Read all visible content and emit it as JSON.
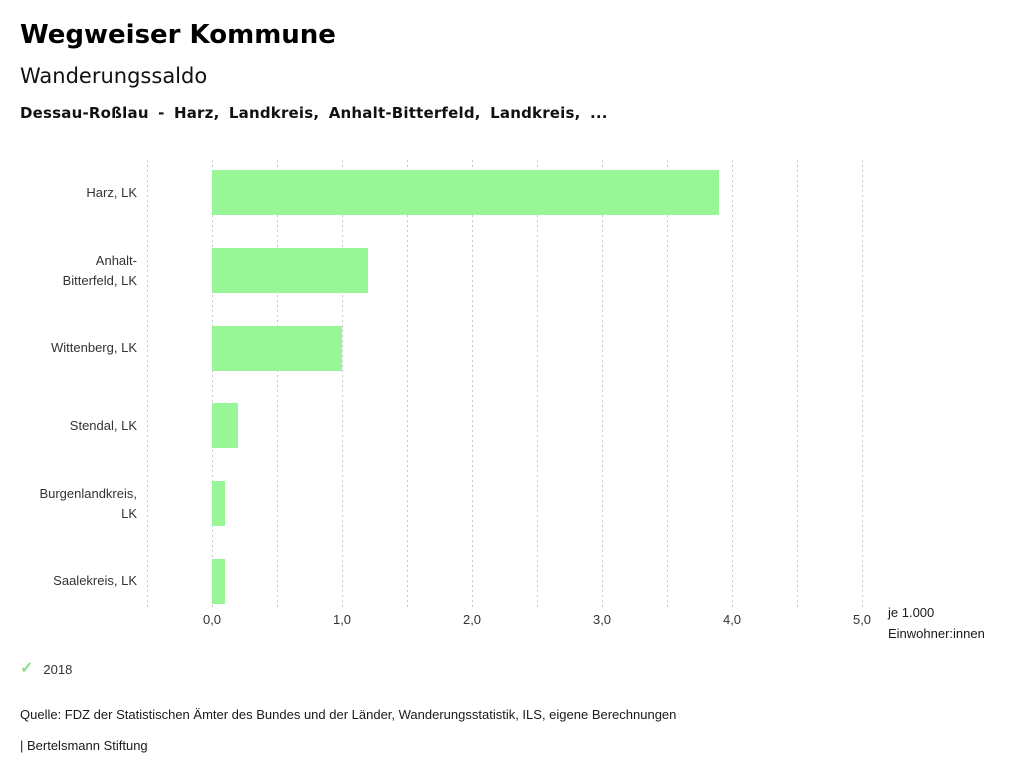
{
  "header": {
    "app_title": "Wegweiser Kommune",
    "chart_title": "Wanderungssaldo",
    "chart_subtitle": "Dessau-Roßlau - Harz, Landkreis, Anhalt-Bitterfeld, Landkreis, ..."
  },
  "chart_data": {
    "type": "bar",
    "orientation": "horizontal",
    "title": "Wanderungssaldo",
    "categories": [
      "Harz, LK",
      "Anhalt-Bitterfeld, LK",
      "Wittenberg, LK",
      "Stendal, LK",
      "Burgenlandkreis, LK",
      "Saalekreis, LK"
    ],
    "category_display": [
      "Harz, LK",
      "Anhalt-\nBitterfeld, LK",
      "Wittenberg, LK",
      "Stendal, LK",
      "Burgenlandkreis,\nLK",
      "Saalekreis, LK"
    ],
    "series": [
      {
        "name": "2018",
        "values": [
          3.9,
          1.2,
          1.0,
          0.2,
          0.1,
          0.1
        ]
      }
    ],
    "xlim": [
      -0.5,
      5.0
    ],
    "grid_step": 0.5,
    "grid": true,
    "x_tick_values": [
      0,
      1,
      2,
      3,
      4,
      5
    ],
    "x_tick_labels": [
      "0,0",
      "1,0",
      "2,0",
      "3,0",
      "4,0",
      "5,0"
    ],
    "xlabel": "je 1.000\nEinwohner:innen",
    "bar_color": "#98f598",
    "gridline_color": "#c9c9c9",
    "legend_position": "bottom-left"
  },
  "legend": {
    "items": [
      {
        "label": "2018",
        "marker": "check",
        "color": "#8de08d"
      }
    ]
  },
  "footer": {
    "source": "Quelle: FDZ der Statistischen Ämter des Bundes und der Länder, Wanderungsstatistik, ILS, eigene Berechnungen",
    "branding": "| Bertelsmann Stiftung"
  }
}
